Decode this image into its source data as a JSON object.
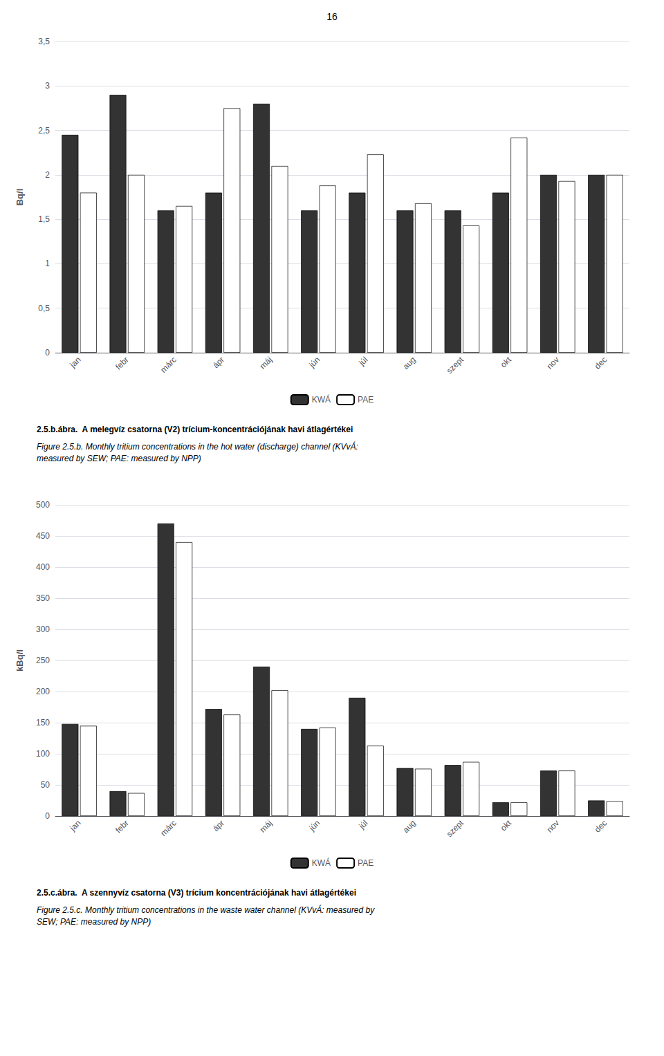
{
  "chart_data": [
    {
      "type": "bar",
      "annotations": [
        "16"
      ],
      "title": "2.5.b.ábra.  A melegvíz csatorna (V2) trícium-koncentrációjának havi átlagértékei",
      "subtitle": "Figure 2.5.b. Monthly tritium concentrations in the hot water (discharge) channel (KVvÁ:\nmeasured by SEW; PAE: measured by NPP)",
      "ylabel": "Bq/l",
      "categories": [
        "jan",
        "febr",
        "márc",
        "ápr",
        "máj",
        "jún",
        "júl",
        "aug",
        "szept",
        "okt",
        "nov",
        "dec"
      ],
      "series": [
        {
          "name": "KWÁ",
          "color": "#333333",
          "values": [
            2.45,
            2.9,
            1.6,
            1.8,
            2.8,
            1.6,
            1.8,
            1.6,
            1.6,
            1.8,
            2.0,
            2.0
          ]
        },
        {
          "name": "PAE",
          "color": "#ffffff",
          "values": [
            1.8,
            2.0,
            1.65,
            2.75,
            2.1,
            1.88,
            2.23,
            1.68,
            1.43,
            2.42,
            1.93,
            2.0
          ]
        }
      ],
      "ylim": [
        0,
        3.5
      ],
      "yticks": [
        0,
        {
          "value": 0.5,
          "label": "0,5"
        },
        1,
        {
          "value": 1.5,
          "label": "1,5"
        },
        2,
        {
          "value": 2.5,
          "label": "2,5"
        },
        3,
        {
          "value": 3.5,
          "label": "3,5"
        }
      ],
      "grid": true,
      "legend": "bottom"
    },
    {
      "type": "bar",
      "title": "2.5.c.ábra.  A szennyvíz csatorna (V3) trícium koncentrációjának havi átlagértékei",
      "subtitle": "Figure 2.5.c. Monthly tritium concentrations in the waste water channel (KVvÁ: measured by\nSEW; PAE: measured by NPP)",
      "ylabel": "kBq/l",
      "categories": [
        "jan",
        "febr",
        "márc",
        "ápr",
        "máj",
        "jún",
        "júl",
        "aug",
        "szept",
        "okt",
        "nov",
        "dec"
      ],
      "series": [
        {
          "name": "KWÁ",
          "color": "#333333",
          "values": [
            148,
            40,
            470,
            172,
            240,
            140,
            190,
            77,
            82,
            22,
            73,
            25
          ]
        },
        {
          "name": "PAE",
          "color": "#ffffff",
          "values": [
            145,
            37,
            440,
            163,
            202,
            142,
            113,
            76,
            87,
            22,
            73,
            24
          ]
        }
      ],
      "ylim": [
        0,
        500
      ],
      "yticks": [
        0,
        50,
        100,
        150,
        200,
        250,
        300,
        350,
        400,
        450,
        500
      ],
      "grid": true,
      "legend": "bottom"
    }
  ]
}
